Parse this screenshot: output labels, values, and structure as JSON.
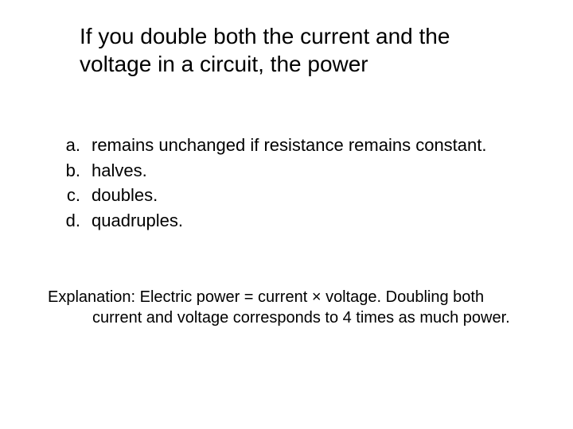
{
  "title": "If you double both the current and the voltage in a circuit, the power",
  "options": [
    {
      "letter": "a.",
      "text": "remains unchanged if resistance remains constant."
    },
    {
      "letter": "b.",
      "text": "halves."
    },
    {
      "letter": "c.",
      "text": "doubles."
    },
    {
      "letter": "d.",
      "text": "quadruples."
    }
  ],
  "explanation": "Explanation: Electric power = current × voltage. Doubling both current and voltage corresponds to 4 times as much power.",
  "styling": {
    "background_color": "#ffffff",
    "text_color": "#000000",
    "title_fontsize": 28,
    "body_fontsize": 22,
    "explanation_fontsize": 20,
    "font_family": "Arial"
  }
}
